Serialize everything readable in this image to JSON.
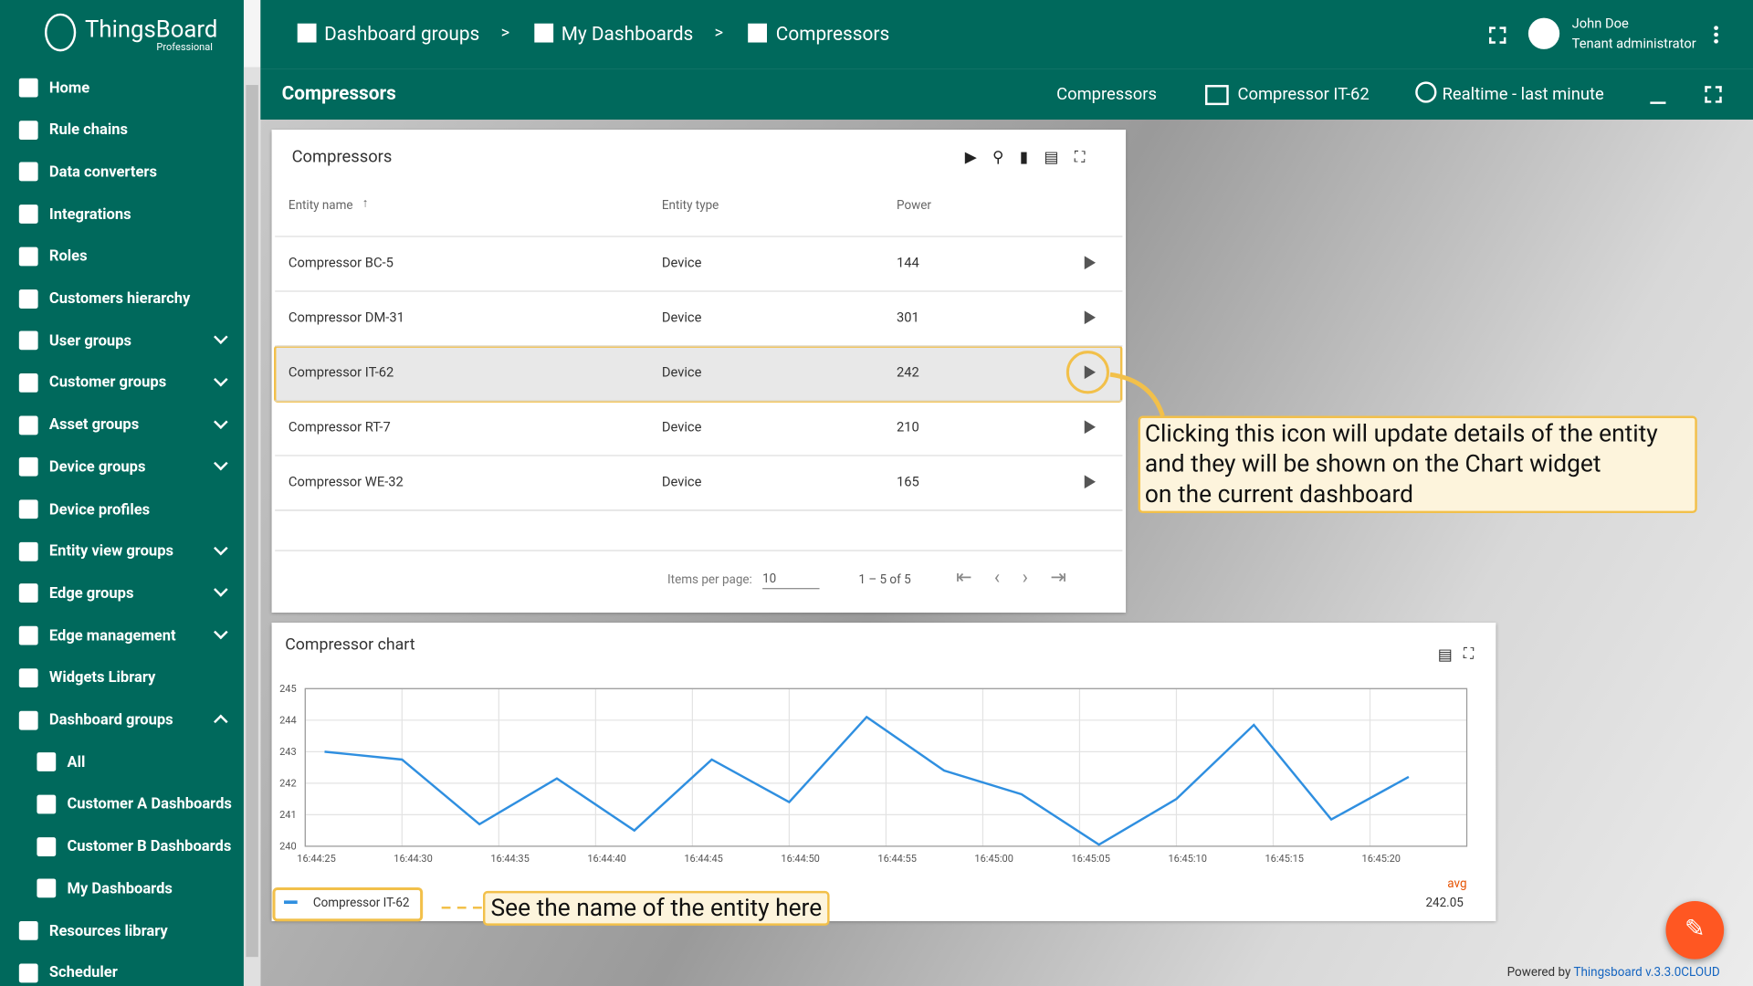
{
  "header": {
    "logo": "ThingsBoard",
    "logo_sub": "Professional",
    "breadcrumbs": [
      "Dashboard groups",
      "My Dashboards",
      "Compressors"
    ],
    "separator": ">",
    "user_name": "John Doe",
    "user_role": "Tenant administrator"
  },
  "toolbar": {
    "title": "Compressors",
    "state": "Compressors",
    "entity": "Compressor IT-62",
    "timewindow": "Realtime - last minute"
  },
  "sidebar": [
    {
      "label": "Home"
    },
    {
      "label": "Rule chains"
    },
    {
      "label": "Data converters"
    },
    {
      "label": "Integrations"
    },
    {
      "label": "Roles"
    },
    {
      "label": "Customers hierarchy"
    },
    {
      "label": "User groups",
      "expand": "down"
    },
    {
      "label": "Customer groups",
      "expand": "down"
    },
    {
      "label": "Asset groups",
      "expand": "down"
    },
    {
      "label": "Device groups",
      "expand": "down"
    },
    {
      "label": "Device profiles"
    },
    {
      "label": "Entity view groups",
      "expand": "down"
    },
    {
      "label": "Edge groups",
      "expand": "down"
    },
    {
      "label": "Edge management",
      "expand": "down"
    },
    {
      "label": "Widgets Library"
    },
    {
      "label": "Dashboard groups",
      "expand": "up"
    },
    {
      "label": "All",
      "child": true
    },
    {
      "label": "Customer A Dashboards",
      "child": true
    },
    {
      "label": "Customer B Dashboards",
      "child": true
    },
    {
      "label": "My Dashboards",
      "child": true
    },
    {
      "label": "Resources library"
    },
    {
      "label": "Scheduler"
    }
  ],
  "table": {
    "title": "Compressors",
    "columns": [
      "Entity name",
      "Entity type",
      "Power"
    ],
    "rows": [
      [
        "Compressor BC-5",
        "Device",
        "144"
      ],
      [
        "Compressor DM-31",
        "Device",
        "301"
      ],
      [
        "Compressor IT-62",
        "Device",
        "242"
      ],
      [
        "Compressor RT-7",
        "Device",
        "210"
      ],
      [
        "Compressor WE-32",
        "Device",
        "165"
      ]
    ],
    "items_per_page_label": "Items per page:",
    "items_per_page": "10",
    "range": "1 – 5 of 5"
  },
  "chart": {
    "type": "line",
    "title": "Compressor chart",
    "x": [
      "16:44:26",
      "16:44:30",
      "16:44:34",
      "16:44:38",
      "16:44:42",
      "16:44:46",
      "16:44:50",
      "16:44:54",
      "16:44:58",
      "16:45:02",
      "16:45:06",
      "16:45:10",
      "16:45:14",
      "16:45:18",
      "16:45:22"
    ],
    "series": [
      {
        "name": "Compressor IT-62",
        "color": "#2f8fe0",
        "values": [
          243.0,
          242.75,
          240.7,
          242.15,
          240.5,
          242.75,
          241.4,
          244.1,
          242.4,
          241.65,
          240.05,
          241.5,
          243.85,
          240.85,
          242.2
        ]
      }
    ],
    "xlim": [
      "16:44:25",
      "16:45:25"
    ],
    "xticks": [
      "16:44:25",
      "16:44:30",
      "16:44:35",
      "16:44:40",
      "16:44:45",
      "16:44:50",
      "16:44:55",
      "16:45:00",
      "16:45:05",
      "16:45:10",
      "16:45:15",
      "16:45:20"
    ],
    "ylim": [
      240,
      245
    ],
    "yticks": [
      240,
      241,
      242,
      243,
      244,
      245
    ],
    "grid": true,
    "legend_stat": "avg",
    "legend_stat_value": "242.05"
  },
  "annotations": {
    "row_action": [
      "Clicking this icon will update details of the entity",
      "and they will be shown on the Chart widget",
      "on the current dashboard"
    ],
    "legend": "See the name of the entity here"
  },
  "footer": {
    "powered": "Powered by",
    "version": "Thingsboard v.3.3.0CLOUD"
  }
}
